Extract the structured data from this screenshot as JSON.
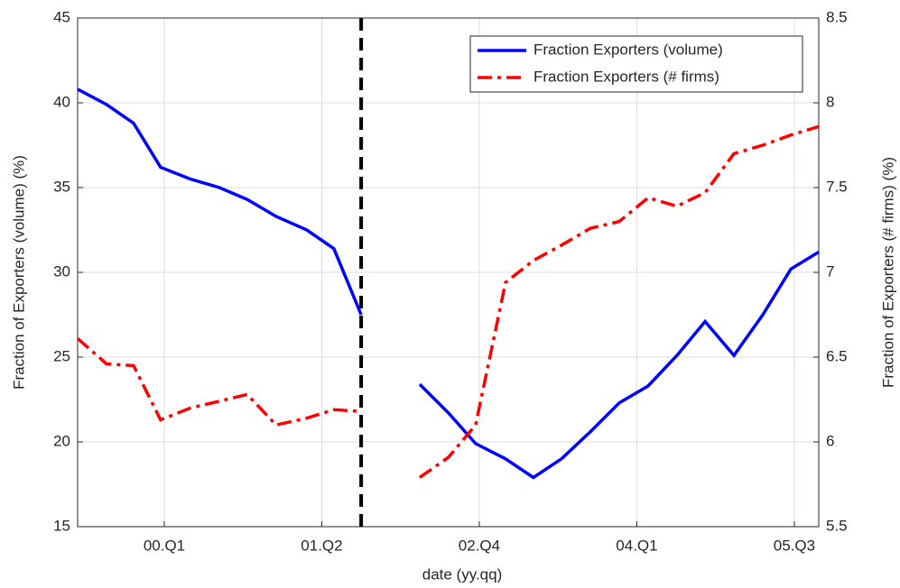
{
  "chart_data": {
    "type": "line",
    "x_label": "date (yy.qq)",
    "y_label": "Fraction of Exporters (volume) (%)",
    "y2_label": "Fraction of Exporters (# firms) (%)",
    "x": [
      -3.3,
      -2.2,
      -1.17,
      -0.14,
      1.0,
      2.1,
      3.16,
      4.26,
      5.43,
      6.46,
      7.5,
      8.6,
      9.73,
      10.83,
      11.86,
      13.0,
      14.06,
      15.13,
      16.23,
      17.33,
      18.43,
      19.53,
      20.6,
      21.7,
      22.8,
      23.87,
      24.93
    ],
    "series": [
      {
        "name": "Fraction Exporters (volume)",
        "color": "#0000ff",
        "dash": "solid",
        "values": [
          40.8,
          39.9,
          38.8,
          36.2,
          35.5,
          35.0,
          34.3,
          33.3,
          32.5,
          31.4,
          27.5,
          null,
          23.4,
          21.7,
          19.9,
          19.0,
          17.9,
          19.0,
          20.6,
          22.3,
          23.3,
          25.1,
          27.1,
          25.1,
          27.5,
          30.2,
          31.2
        ]
      },
      {
        "name": "Fraction Exporters (# firms)",
        "color": "#ff0000",
        "dash": "dashdot",
        "axis": "y2",
        "values": [
          6.61,
          6.46,
          6.45,
          6.13,
          6.2,
          6.24,
          6.28,
          6.1,
          6.14,
          6.19,
          6.18,
          null,
          5.79,
          5.91,
          6.1,
          6.94,
          7.07,
          7.16,
          7.26,
          7.3,
          7.44,
          7.39,
          7.47,
          7.7,
          7.75,
          7.81,
          7.86
        ]
      }
    ],
    "xlim": [
      -3.3,
      24.93
    ],
    "xticks": [
      {
        "value": 0,
        "label": "00.Q1"
      },
      {
        "value": 6,
        "label": "01.Q2"
      },
      {
        "value": 12,
        "label": "02.Q4"
      },
      {
        "value": 18,
        "label": "04.Q1"
      },
      {
        "value": 24,
        "label": "05.Q3"
      }
    ],
    "ylim": [
      15,
      45
    ],
    "yticks": [
      15,
      20,
      25,
      30,
      35,
      40,
      45
    ],
    "y2lim": [
      5.5,
      8.5
    ],
    "y2ticks": [
      5.5,
      6,
      6.5,
      7,
      7.5,
      8,
      8.5
    ],
    "vline_x": 7.5,
    "grid": true,
    "legend": "upper right"
  }
}
